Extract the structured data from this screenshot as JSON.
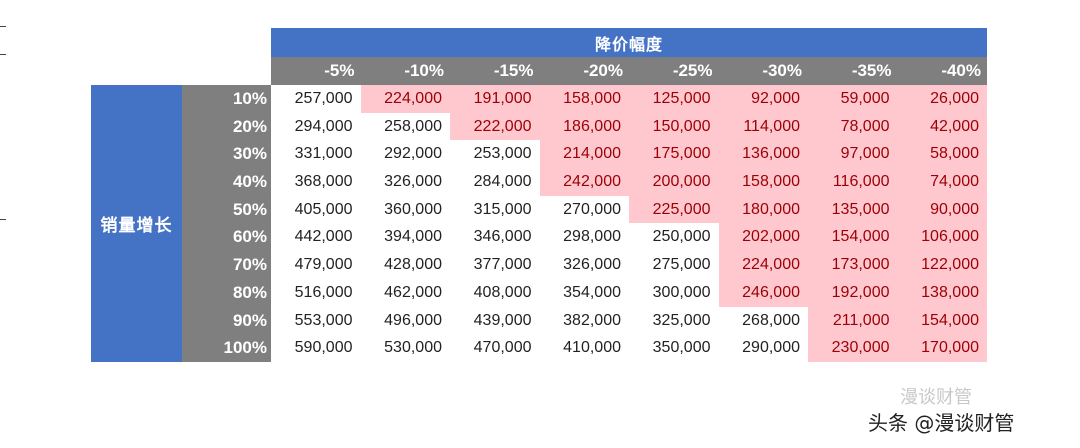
{
  "table": {
    "row_group_label": "销量增长",
    "col_group_label": "降价幅度",
    "columns": [
      "-5%",
      "-10%",
      "-15%",
      "-20%",
      "-25%",
      "-30%",
      "-35%",
      "-40%"
    ],
    "rows": [
      "10%",
      "20%",
      "30%",
      "40%",
      "50%",
      "60%",
      "70%",
      "80%",
      "90%",
      "100%"
    ],
    "values": [
      [
        "257,000",
        "224,000",
        "191,000",
        "158,000",
        "125,000",
        "92,000",
        "59,000",
        "26,000"
      ],
      [
        "294,000",
        "258,000",
        "222,000",
        "186,000",
        "150,000",
        "114,000",
        "78,000",
        "42,000"
      ],
      [
        "331,000",
        "292,000",
        "253,000",
        "214,000",
        "175,000",
        "136,000",
        "97,000",
        "58,000"
      ],
      [
        "368,000",
        "326,000",
        "284,000",
        "242,000",
        "200,000",
        "158,000",
        "116,000",
        "74,000"
      ],
      [
        "405,000",
        "360,000",
        "315,000",
        "270,000",
        "225,000",
        "180,000",
        "135,000",
        "90,000"
      ],
      [
        "442,000",
        "394,000",
        "346,000",
        "298,000",
        "250,000",
        "202,000",
        "154,000",
        "106,000"
      ],
      [
        "479,000",
        "428,000",
        "377,000",
        "326,000",
        "275,000",
        "224,000",
        "173,000",
        "122,000"
      ],
      [
        "516,000",
        "462,000",
        "408,000",
        "354,000",
        "300,000",
        "246,000",
        "192,000",
        "138,000"
      ],
      [
        "553,000",
        "496,000",
        "439,000",
        "382,000",
        "325,000",
        "268,000",
        "211,000",
        "154,000"
      ],
      [
        "590,000",
        "530,000",
        "470,000",
        "410,000",
        "350,000",
        "290,000",
        "230,000",
        "170,000"
      ]
    ],
    "highlighted": [
      [
        false,
        true,
        true,
        true,
        true,
        true,
        true,
        true
      ],
      [
        false,
        false,
        true,
        true,
        true,
        true,
        true,
        true
      ],
      [
        false,
        false,
        false,
        true,
        true,
        true,
        true,
        true
      ],
      [
        false,
        false,
        false,
        true,
        true,
        true,
        true,
        true
      ],
      [
        false,
        false,
        false,
        false,
        true,
        true,
        true,
        true
      ],
      [
        false,
        false,
        false,
        false,
        false,
        true,
        true,
        true
      ],
      [
        false,
        false,
        false,
        false,
        false,
        true,
        true,
        true
      ],
      [
        false,
        false,
        false,
        false,
        false,
        true,
        true,
        true
      ],
      [
        false,
        false,
        false,
        false,
        false,
        false,
        true,
        true
      ],
      [
        false,
        false,
        false,
        false,
        false,
        false,
        true,
        true
      ]
    ],
    "colors": {
      "header_blue": "#4472c4",
      "header_gray": "#7f7f7f",
      "highlight_fill": "#ffc7ce",
      "highlight_text": "#9c0006"
    }
  },
  "watermark": {
    "faint": "漫谈财管",
    "main": "头条 @漫谈财管"
  }
}
